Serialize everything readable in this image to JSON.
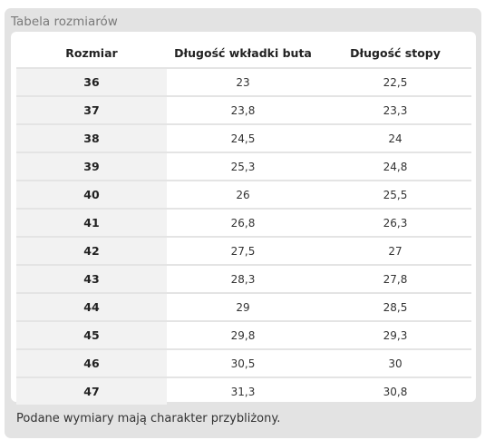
{
  "panel": {
    "title": "Tabela rozmiarów",
    "footnote": "Podane wymiary mają charakter przybliżony."
  },
  "table": {
    "headers": [
      "Rozmiar",
      "Długość wkładki buta",
      "Długość stopy"
    ],
    "rows": [
      {
        "size": "36",
        "insole": "23",
        "foot": "22,5"
      },
      {
        "size": "37",
        "insole": "23,8",
        "foot": "23,3"
      },
      {
        "size": "38",
        "insole": "24,5",
        "foot": "24"
      },
      {
        "size": "39",
        "insole": "25,3",
        "foot": "24,8"
      },
      {
        "size": "40",
        "insole": "26",
        "foot": "25,5"
      },
      {
        "size": "41",
        "insole": "26,8",
        "foot": "26,3"
      },
      {
        "size": "42",
        "insole": "27,5",
        "foot": "27"
      },
      {
        "size": "43",
        "insole": "28,3",
        "foot": "27,8"
      },
      {
        "size": "44",
        "insole": "29",
        "foot": "28,5"
      },
      {
        "size": "45",
        "insole": "29,8",
        "foot": "29,3"
      },
      {
        "size": "46",
        "insole": "30,5",
        "foot": "30"
      },
      {
        "size": "47",
        "insole": "31,3",
        "foot": "30,8"
      }
    ]
  }
}
